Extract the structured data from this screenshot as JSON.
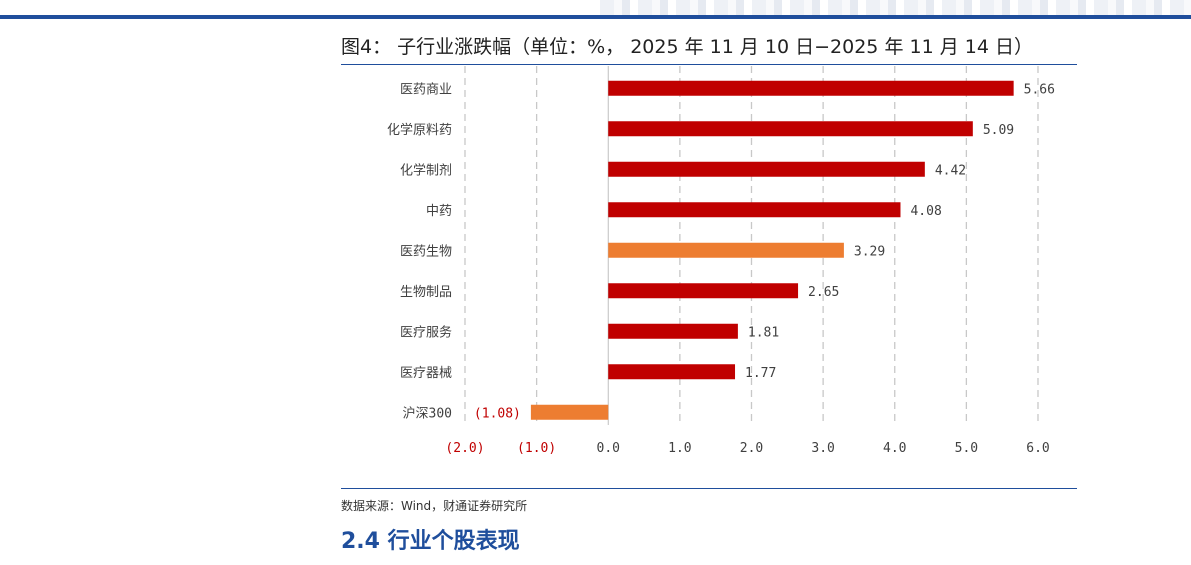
{
  "header": {
    "colors": {
      "rule": "#1f4e9c"
    }
  },
  "figure": {
    "title": "图4：  子行业涨跌幅（单位：%， 2025 年 11 月 10 日−2025 年 11 月 14 日）"
  },
  "source": "数据来源：Wind，财通证券研究所",
  "section": {
    "heading": "2.4 行业个股表现"
  },
  "chart_data": {
    "type": "bar",
    "orientation": "horizontal",
    "title": "图4：  子行业涨跌幅（单位：%， 2025 年 11 月 10 日−2025 年 11 月 14 日）",
    "categories": [
      "医药商业",
      "化学原料药",
      "化学制剂",
      "中药",
      "医药生物",
      "生物制品",
      "医疗服务",
      "医疗器械",
      "沪深300"
    ],
    "values": [
      5.66,
      5.09,
      4.42,
      4.08,
      3.29,
      2.65,
      1.81,
      1.77,
      -1.08
    ],
    "value_labels": [
      "5.66",
      "5.09",
      "4.42",
      "4.08",
      "3.29",
      "2.65",
      "1.81",
      "1.77",
      "(1.08)"
    ],
    "highlight": [
      false,
      false,
      false,
      false,
      true,
      false,
      false,
      false,
      true
    ],
    "xlim": [
      -2.0,
      6.0
    ],
    "xticks": [
      -2.0,
      -1.0,
      0.0,
      1.0,
      2.0,
      3.0,
      4.0,
      5.0,
      6.0
    ],
    "xtick_labels": [
      "(2.0)",
      "(1.0)",
      "0.0",
      "1.0",
      "2.0",
      "3.0",
      "4.0",
      "5.0",
      "6.0"
    ],
    "grid": "vertical-dashed",
    "legend": "none",
    "colors": {
      "bar": "#c00000",
      "highlight": "#ed7d31",
      "negative_text": "#c00000",
      "text": "#404040",
      "grid": "#c8c8c8"
    }
  }
}
